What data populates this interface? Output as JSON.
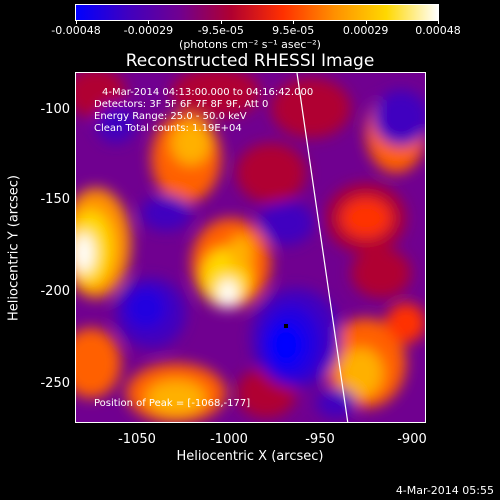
{
  "colorbar": {
    "tick_labels": [
      "-0.00048",
      "-0.00029",
      "-9.5e-05",
      "9.5e-05",
      "0.00029",
      "0.00048"
    ],
    "units": "(photons cm⁻² s⁻¹ asec⁻²)",
    "colors": [
      "#0000ff",
      "#4000c0",
      "#700090",
      "#b00030",
      "#ff3000",
      "#ff9000",
      "#ffd800",
      "#ffffff"
    ]
  },
  "plot": {
    "title": "Reconstructed RHESSI Image",
    "info_lines": [
      "4-Mar-2014 04:13:00.000 to 04:16:42.000",
      "Detectors: 3F 5F 6F 7F 8F 9F, Att 0",
      "Energy Range: 25.0 - 50.0 keV",
      "Clean     Total counts: 1.19E+04"
    ],
    "peak_label": "Position of Peak = [-1068,-177]",
    "y_ticks": [
      "-100",
      "-150",
      "-200",
      "-250"
    ],
    "x_ticks": [
      "-1050",
      "-1000",
      "-950",
      "-900"
    ],
    "y_label": "Heliocentric Y (arcsec)",
    "x_label": "Heliocentric X (arcsec)",
    "x_range": [
      -1078,
      -887
    ],
    "y_range": [
      -272,
      -81
    ]
  },
  "timestamp": "4-Mar-2014 05:55"
}
